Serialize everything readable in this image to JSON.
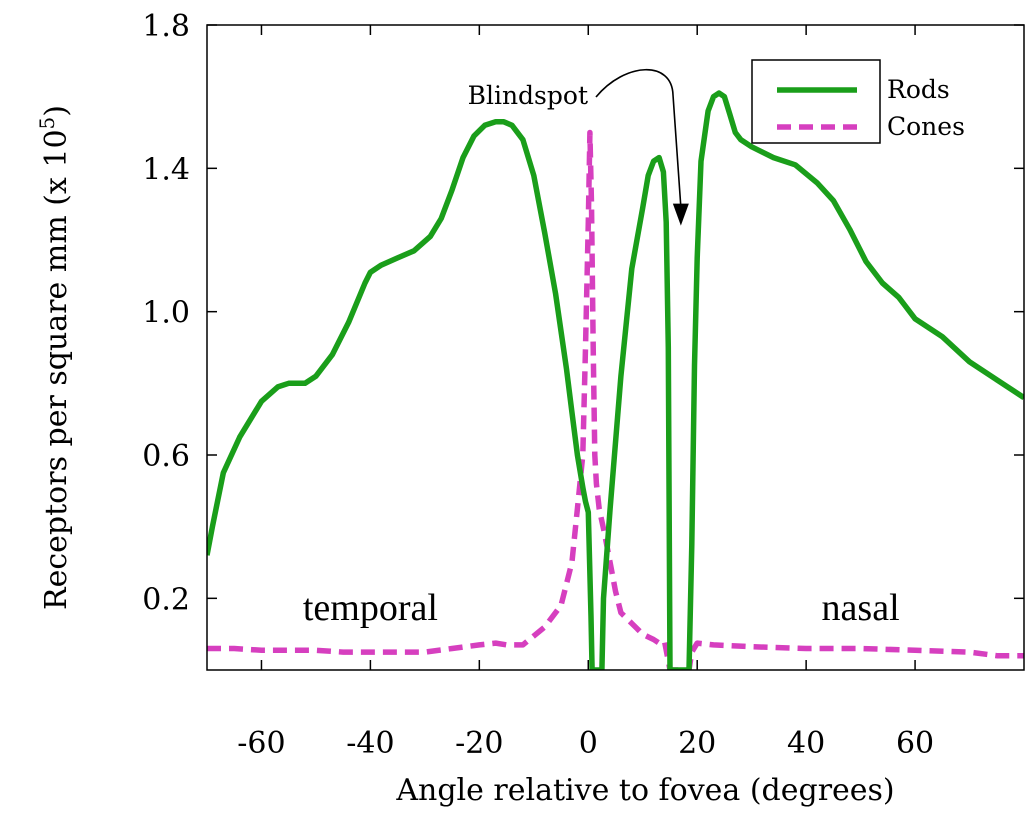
{
  "chart_data": {
    "type": "line",
    "title": "",
    "xlabel": "Angle relative to fovea (degrees)",
    "ylabel": "Receptors per square mm (x 10",
    "ylabel_exponent": "5",
    "ylabel_close": ")",
    "xlim": [
      -70,
      80
    ],
    "ylim": [
      0,
      1.8
    ],
    "xticks": [
      -60,
      -40,
      -20,
      0,
      20,
      40,
      60
    ],
    "xtick_labels": [
      "-60",
      "-40",
      "-20",
      "0",
      "20",
      "40",
      "60"
    ],
    "yticks": [
      0.2,
      0.6,
      1.0,
      1.4,
      1.8
    ],
    "ytick_labels": [
      "0.2",
      "0.6",
      "1.0",
      "1.4",
      "1.8"
    ],
    "grid": false,
    "legend_position": "top-right",
    "annotations": {
      "blindspot": {
        "text": "Blindspot",
        "x": 17,
        "y": 1.24
      },
      "temporal": {
        "text": "temporal",
        "x": -40,
        "y": 0.14
      },
      "nasal": {
        "text": "nasal",
        "x": 50,
        "y": 0.14
      }
    },
    "series": [
      {
        "name": "Rods",
        "color": "#1a9e1a",
        "dash": "solid",
        "x": [
          -70,
          -69,
          -67,
          -64,
          -60,
          -57,
          -55,
          -52,
          -50,
          -47,
          -44,
          -41,
          -40,
          -38,
          -35,
          -32,
          -29,
          -27,
          -25,
          -23,
          -21,
          -19,
          -17,
          -15.5,
          -14,
          -12,
          -10,
          -8,
          -6,
          -4,
          -3,
          -2,
          -1,
          -0.5,
          0,
          0.5,
          0.7,
          1,
          1.4,
          2,
          2.5,
          2.8,
          4,
          6,
          8,
          10,
          11,
          12,
          13,
          13.8,
          14.3,
          14.7,
          15,
          18.5,
          19,
          19.5,
          20,
          20.7,
          22,
          23,
          24,
          25,
          26,
          27,
          28,
          30,
          34,
          38,
          42,
          45,
          48,
          51,
          54,
          57,
          58,
          60,
          65,
          70,
          75,
          80
        ],
        "y": [
          0.32,
          0.4,
          0.55,
          0.65,
          0.75,
          0.79,
          0.8,
          0.8,
          0.82,
          0.88,
          0.97,
          1.08,
          1.11,
          1.13,
          1.15,
          1.17,
          1.21,
          1.26,
          1.34,
          1.43,
          1.49,
          1.52,
          1.53,
          1.53,
          1.52,
          1.48,
          1.38,
          1.22,
          1.05,
          0.84,
          0.72,
          0.6,
          0.51,
          0.47,
          0.44,
          0.15,
          0.0,
          0.0,
          0.0,
          0.0,
          0.0,
          0.2,
          0.45,
          0.82,
          1.12,
          1.29,
          1.38,
          1.42,
          1.43,
          1.39,
          1.25,
          0.9,
          0.0,
          0.0,
          0.35,
          0.85,
          1.15,
          1.42,
          1.56,
          1.6,
          1.61,
          1.6,
          1.55,
          1.5,
          1.48,
          1.46,
          1.43,
          1.41,
          1.36,
          1.31,
          1.23,
          1.14,
          1.08,
          1.04,
          1.02,
          0.98,
          0.93,
          0.86,
          0.81,
          0.76
        ]
      },
      {
        "name": "Cones",
        "color": "#d63fbf",
        "dash": "dashed",
        "x": [
          -70,
          -65,
          -60,
          -55,
          -50,
          -45,
          -40,
          -35,
          -30,
          -25,
          -20,
          -17,
          -15,
          -12,
          -8,
          -5,
          -3,
          -2,
          -1,
          -0.5,
          0,
          0.3,
          0.6,
          0.9,
          1.2,
          1.5,
          2,
          3,
          4,
          5,
          6,
          8,
          10,
          12,
          13,
          14,
          15,
          18.5,
          19,
          20,
          23,
          30,
          40,
          50,
          60,
          70,
          75,
          80
        ],
        "y": [
          0.06,
          0.06,
          0.055,
          0.055,
          0.055,
          0.05,
          0.05,
          0.05,
          0.05,
          0.06,
          0.07,
          0.075,
          0.07,
          0.07,
          0.12,
          0.18,
          0.3,
          0.45,
          0.6,
          0.9,
          1.25,
          1.5,
          1.3,
          0.9,
          0.6,
          0.52,
          0.45,
          0.38,
          0.3,
          0.22,
          0.16,
          0.13,
          0.1,
          0.085,
          0.075,
          0.08,
          0.0,
          0.0,
          0.05,
          0.075,
          0.07,
          0.065,
          0.06,
          0.06,
          0.055,
          0.05,
          0.04,
          0.04
        ]
      }
    ]
  }
}
